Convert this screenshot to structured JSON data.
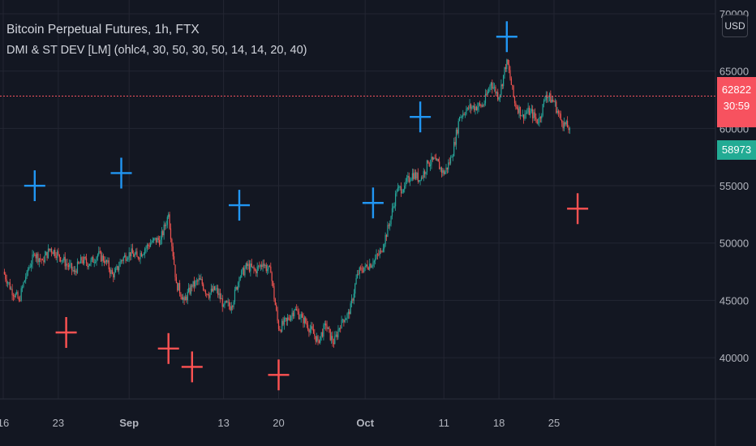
{
  "legend": {
    "title": "Bitcoin Perpetual Futures, 1h, FTX",
    "indicator": "DMI & ST DEV [LM] (ohlc4, 30, 50, 30, 50, 14, 14, 20, 40)"
  },
  "currency_button": "USD",
  "price_tags": {
    "current_price": "62822",
    "countdown": "30:59",
    "line_price": "58973"
  },
  "colors": {
    "background": "#131722",
    "grid": "#232632",
    "text": "#b2b5be",
    "up": "#26a69a",
    "down": "#ef5350",
    "marker_blue": "#2196f3",
    "marker_red": "#ff5252",
    "last_price_line": "#f7525f"
  },
  "chart_data": {
    "type": "line",
    "title": "Bitcoin Perpetual Futures, 1h, FTX",
    "xlabel": "",
    "ylabel": "",
    "ylim": [
      36400,
      71200
    ],
    "y_ticks": [
      40000,
      45000,
      50000,
      55000,
      60000,
      65000,
      70000
    ],
    "x_ticks": [
      {
        "label": "16",
        "day": 16
      },
      {
        "label": "23",
        "day": 23
      },
      {
        "label": "Sep",
        "day": 32
      },
      {
        "label": "13",
        "day": 44
      },
      {
        "label": "20",
        "day": 51
      },
      {
        "label": "Oct",
        "day": 62
      },
      {
        "label": "11",
        "day": 72
      },
      {
        "label": "18",
        "day": 79
      },
      {
        "label": "25",
        "day": 86
      }
    ],
    "series": [
      {
        "x": [
          16,
          17,
          18,
          19,
          20,
          21,
          22,
          23,
          24,
          25,
          26,
          27,
          28,
          29,
          30,
          31,
          32,
          33,
          34,
          35,
          36,
          37,
          38,
          39,
          40,
          41,
          42,
          43,
          44,
          45,
          46,
          47,
          48,
          49,
          50,
          51,
          52,
          53,
          54,
          55,
          56,
          57,
          58,
          59,
          60,
          61,
          62,
          63,
          64,
          65,
          66,
          67,
          68,
          69,
          70,
          71,
          72,
          73,
          74,
          75,
          76,
          77,
          78,
          79,
          80,
          81,
          82,
          83,
          84,
          85,
          86,
          87,
          88
        ],
        "values": [
          47500,
          46000,
          45000,
          47500,
          49000,
          48500,
          49500,
          49000,
          48200,
          47500,
          48500,
          48200,
          49000,
          48500,
          47000,
          48500,
          49200,
          48800,
          49500,
          50200,
          50300,
          52500,
          46500,
          45000,
          46200,
          46800,
          45500,
          46000,
          44600,
          44500,
          47000,
          48000,
          47600,
          48200,
          47400,
          42500,
          43200,
          44200,
          43500,
          42500,
          41500,
          42800,
          41200,
          43300,
          43800,
          47300,
          48000,
          48300,
          49300,
          51500,
          54500,
          55000,
          56100,
          55500,
          57000,
          57200,
          56000,
          57500,
          61000,
          61800,
          61900,
          62000,
          64000,
          62700,
          66000,
          62200,
          61200,
          61500,
          60500,
          62900,
          62300,
          60500,
          60000
        ]
      }
    ],
    "markers": [
      {
        "color": "blue",
        "day": 20,
        "price": 55000
      },
      {
        "color": "blue",
        "day": 31,
        "price": 56100
      },
      {
        "color": "blue",
        "day": 46,
        "price": 53300
      },
      {
        "color": "blue",
        "day": 63,
        "price": 53500
      },
      {
        "color": "blue",
        "day": 69,
        "price": 61000
      },
      {
        "color": "blue",
        "day": 80,
        "price": 68000
      },
      {
        "color": "red",
        "day": 24,
        "price": 42200
      },
      {
        "color": "red",
        "day": 37,
        "price": 40800
      },
      {
        "color": "red",
        "day": 40,
        "price": 39200
      },
      {
        "color": "red",
        "day": 51,
        "price": 38500
      },
      {
        "color": "red",
        "day": 89,
        "price": 53000
      }
    ],
    "last_price": 62822,
    "current_price_line": 58973
  }
}
